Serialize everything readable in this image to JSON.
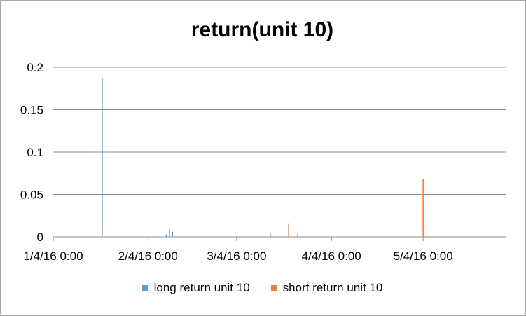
{
  "chart_data": {
    "type": "bar",
    "title": "return(unit 10)",
    "xlabel": "",
    "ylabel": "",
    "x_axis": {
      "type": "date",
      "range": [
        "2016-01-04",
        "2016-05-31"
      ],
      "ticks": [
        {
          "date": "2016-01-04",
          "label": "1/4/16 0:00"
        },
        {
          "date": "2016-02-04",
          "label": "2/4/16 0:00"
        },
        {
          "date": "2016-03-04",
          "label": "3/4/16 0:00"
        },
        {
          "date": "2016-04-04",
          "label": "4/4/16 0:00"
        },
        {
          "date": "2016-05-04",
          "label": "5/4/16 0:00"
        }
      ]
    },
    "ylim": [
      0,
      0.2
    ],
    "y_ticks": [
      "0",
      "0.05",
      "0.1",
      "0.15",
      "0.2"
    ],
    "grid": true,
    "legend_position": "bottom",
    "series": [
      {
        "name": "long return unit 10",
        "color": "#5b9bd5",
        "points": [
          {
            "x": "2016-01-20",
            "y": 0.187
          },
          {
            "x": "2016-02-10",
            "y": 0.003
          },
          {
            "x": "2016-02-11",
            "y": 0.009
          },
          {
            "x": "2016-02-12",
            "y": 0.006
          }
        ]
      },
      {
        "name": "short return unit 10",
        "color": "#ed7d31",
        "points": [
          {
            "x": "2016-03-15",
            "y": 0.004
          },
          {
            "x": "2016-03-21",
            "y": 0.016
          },
          {
            "x": "2016-03-24",
            "y": 0.004
          },
          {
            "x": "2016-05-04",
            "y": 0.068
          }
        ]
      }
    ]
  }
}
